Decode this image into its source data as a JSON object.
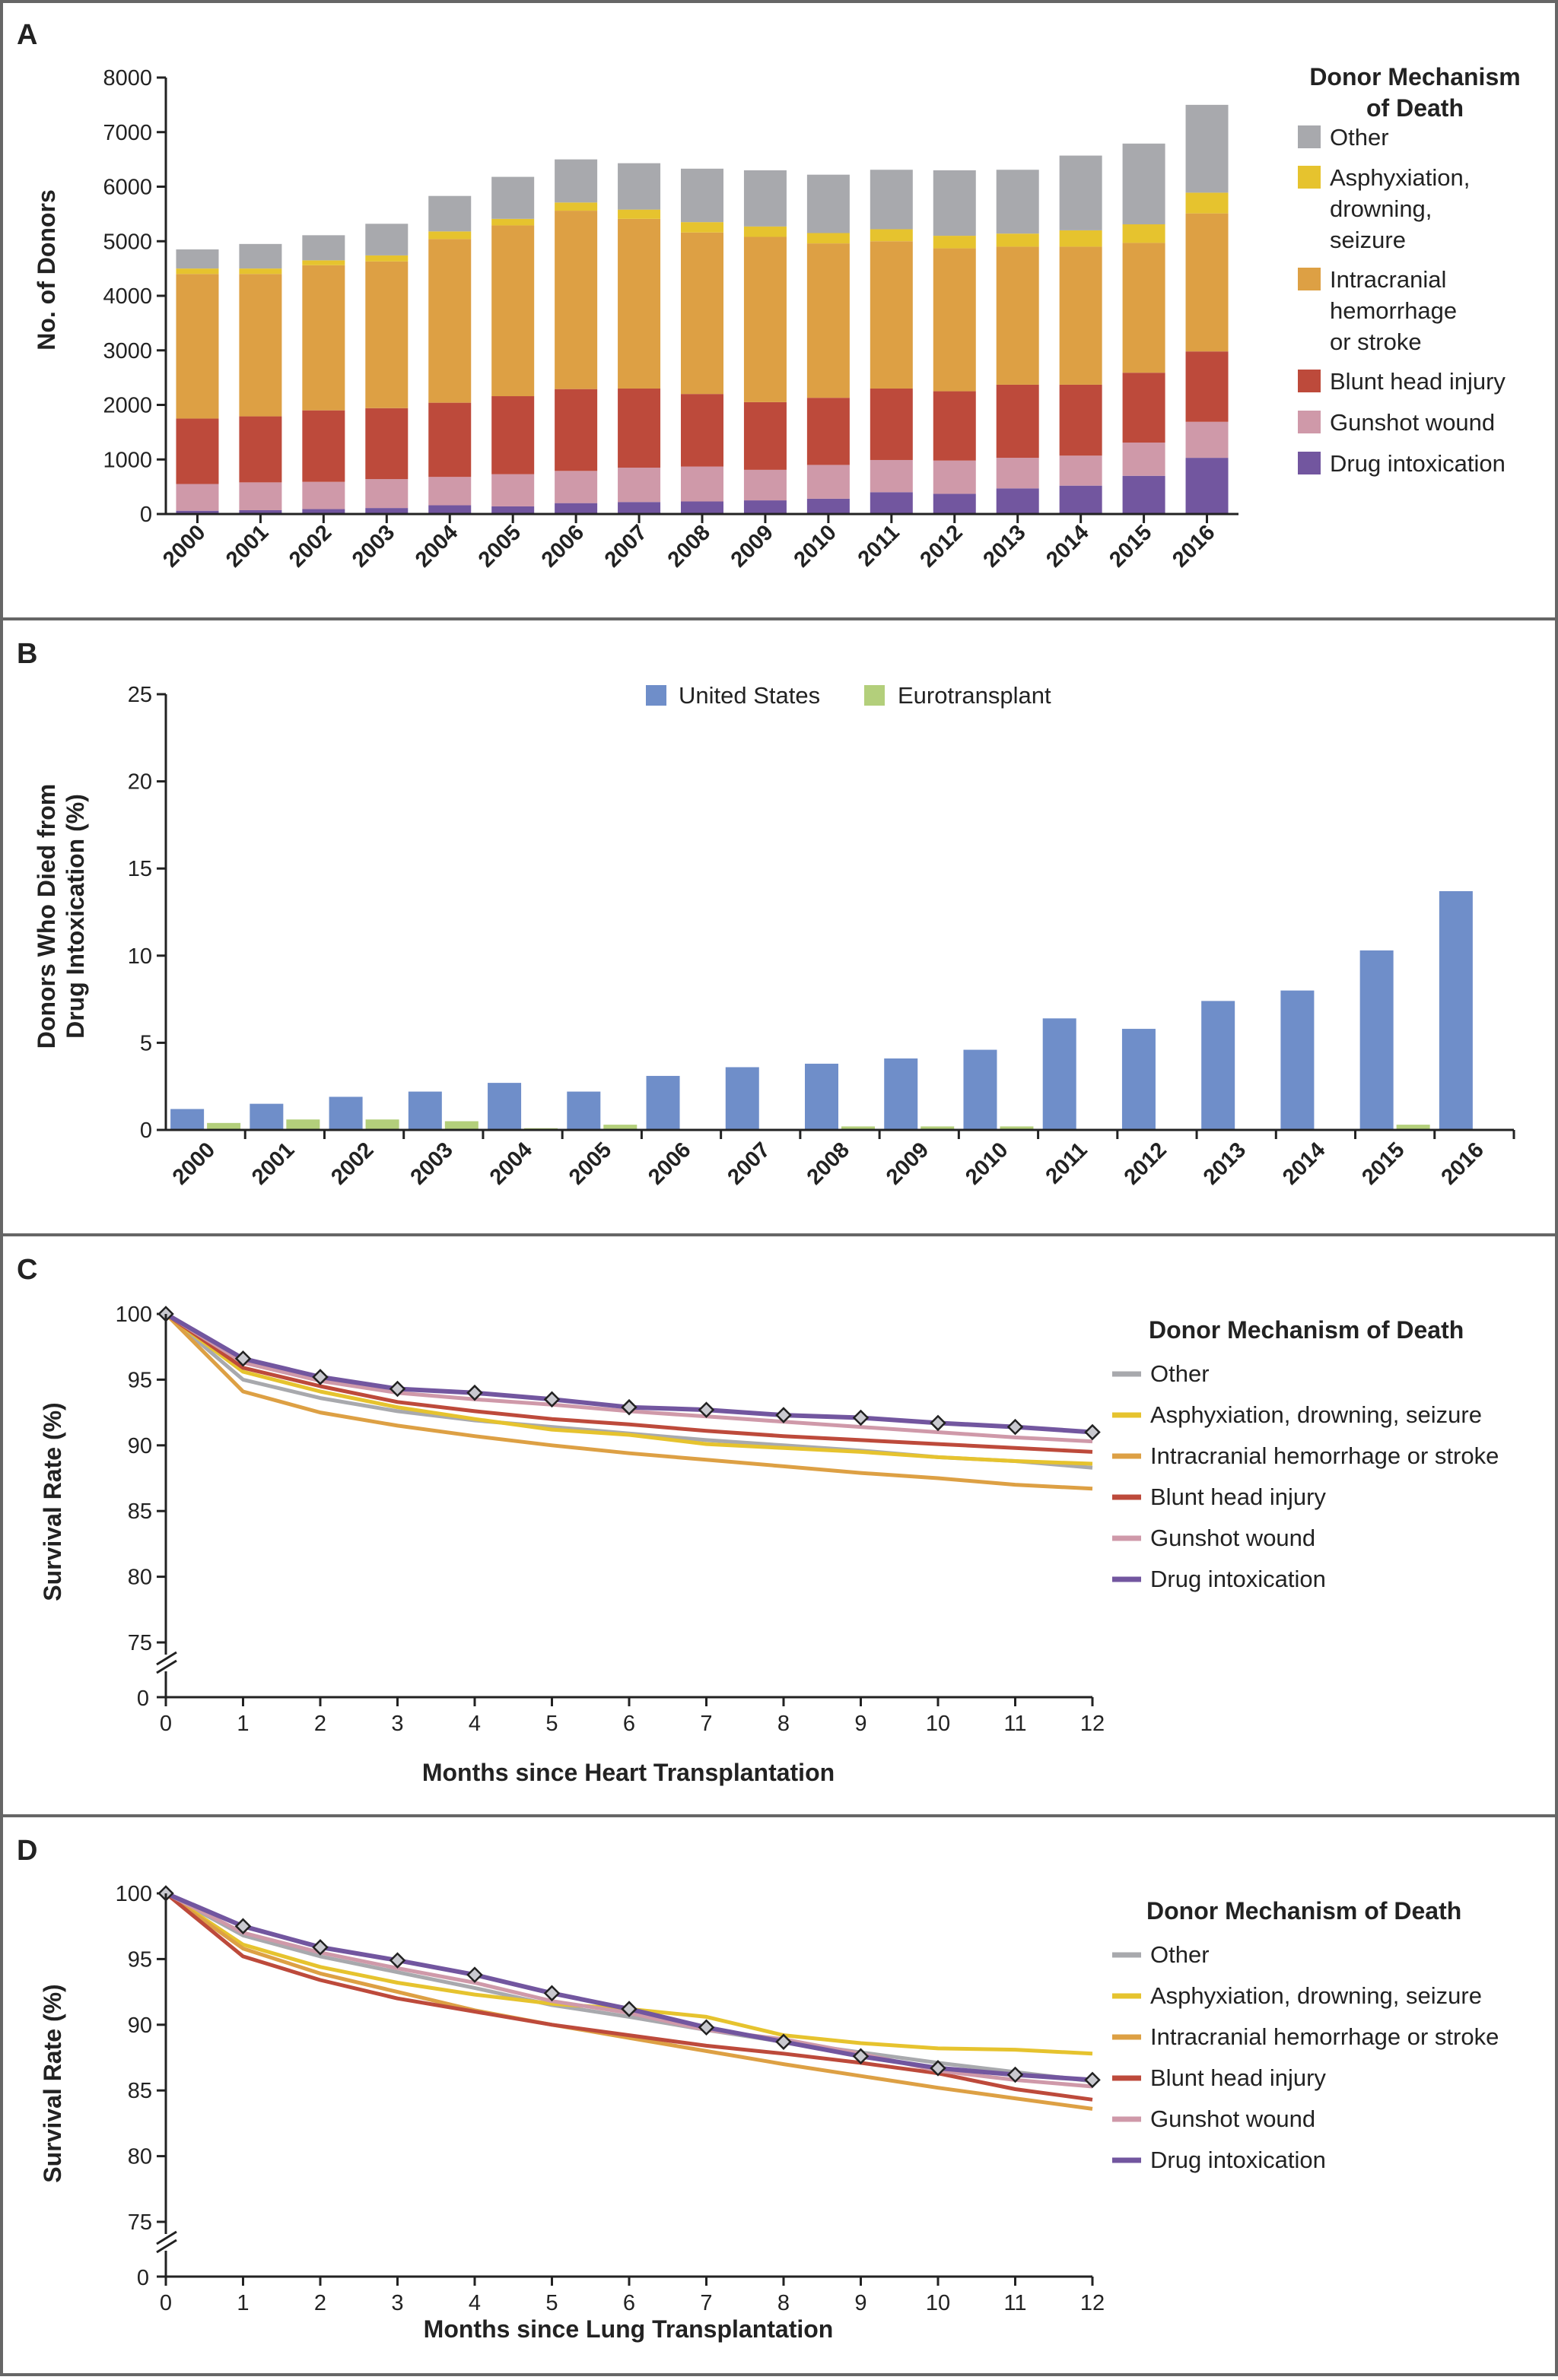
{
  "panels": {
    "A": {
      "letter": "A"
    },
    "B": {
      "letter": "B"
    },
    "C": {
      "letter": "C"
    },
    "D": {
      "letter": "D"
    }
  },
  "colors": {
    "other": "#a8a9ad",
    "asphyxiation": "#e6c32e",
    "intracranial": "#dda044",
    "blunt": "#bd4a3b",
    "gunshot": "#cf99a9",
    "drug": "#72569f",
    "us": "#6f8ec9",
    "eurotransplant": "#b3cf7b"
  },
  "chart_data": [
    {
      "id": "A",
      "type": "bar",
      "stacked": true,
      "title": "",
      "xlabel": "",
      "ylabel": "No. of Donors",
      "ylim": [
        0,
        8000
      ],
      "yticks": [
        0,
        1000,
        2000,
        3000,
        4000,
        5000,
        6000,
        7000,
        8000
      ],
      "categories": [
        "2000",
        "2001",
        "2002",
        "2003",
        "2004",
        "2005",
        "2006",
        "2007",
        "2008",
        "2009",
        "2010",
        "2011",
        "2012",
        "2013",
        "2014",
        "2015",
        "2016"
      ],
      "legend_title_line1": "Donor Mechanism",
      "legend_title_line2": "of Death",
      "series": [
        {
          "key": "drug",
          "name": "Drug intoxication",
          "values": [
            60,
            70,
            90,
            110,
            160,
            140,
            200,
            220,
            230,
            250,
            280,
            400,
            370,
            470,
            520,
            700,
            1030
          ]
        },
        {
          "key": "gunshot",
          "name": "Gunshot wound",
          "values": [
            490,
            510,
            500,
            530,
            520,
            590,
            590,
            630,
            640,
            560,
            620,
            590,
            610,
            560,
            550,
            610,
            660
          ]
        },
        {
          "key": "blunt",
          "name": "Blunt head injury",
          "values": [
            1200,
            1210,
            1310,
            1300,
            1360,
            1430,
            1500,
            1450,
            1330,
            1240,
            1230,
            1310,
            1270,
            1340,
            1300,
            1280,
            1290
          ]
        },
        {
          "key": "intracranial",
          "name": "Intracranial hemorrhage or stroke",
          "values": [
            2650,
            2610,
            2660,
            2690,
            3000,
            3130,
            3270,
            3110,
            2960,
            3030,
            2830,
            2700,
            2620,
            2530,
            2530,
            2380,
            2530
          ]
        },
        {
          "key": "asphyxiation",
          "name": "Asphyxiation, drowning, seizure",
          "values": [
            100,
            100,
            90,
            110,
            140,
            120,
            150,
            170,
            190,
            190,
            190,
            220,
            230,
            240,
            300,
            340,
            380
          ]
        },
        {
          "key": "other",
          "name": "Other",
          "values": [
            350,
            450,
            460,
            580,
            650,
            770,
            790,
            850,
            980,
            1030,
            1070,
            1090,
            1200,
            1170,
            1370,
            1480,
            1610
          ]
        }
      ],
      "legend_lines": {
        "other": [
          "Other"
        ],
        "asphyxiation": [
          "Asphyxiation,",
          "drowning,",
          "seizure"
        ],
        "intracranial": [
          "Intracranial",
          "hemorrhage",
          "or stroke"
        ],
        "blunt": [
          "Blunt head injury"
        ],
        "gunshot": [
          "Gunshot wound"
        ],
        "drug": [
          "Drug intoxication"
        ]
      }
    },
    {
      "id": "B",
      "type": "bar",
      "stacked": false,
      "title": "",
      "xlabel": "",
      "ylabel_line1": "Donors Who Died from",
      "ylabel_line2": "Drug Intoxication (%)",
      "ylim": [
        0,
        25
      ],
      "yticks": [
        0,
        5,
        10,
        15,
        20,
        25
      ],
      "categories": [
        "2000",
        "2001",
        "2002",
        "2003",
        "2004",
        "2005",
        "2006",
        "2007",
        "2008",
        "2009",
        "2010",
        "2011",
        "2012",
        "2013",
        "2014",
        "2015",
        "2016"
      ],
      "series": [
        {
          "key": "us",
          "name": "United States",
          "values": [
            1.2,
            1.5,
            1.9,
            2.2,
            2.7,
            2.2,
            3.1,
            3.6,
            3.8,
            4.1,
            4.6,
            6.4,
            5.8,
            7.4,
            8.0,
            10.3,
            13.7
          ]
        },
        {
          "key": "eurotransplant",
          "name": "Eurotransplant",
          "values": [
            0.4,
            0.6,
            0.6,
            0.5,
            0.1,
            0.3,
            0.0,
            0.0,
            0.2,
            0.2,
            0.2,
            0.0,
            0.0,
            0.0,
            0.0,
            0.3,
            0.0
          ]
        }
      ]
    },
    {
      "id": "C",
      "type": "line",
      "title": "",
      "xlabel": "Months since Heart Transplantation",
      "ylabel": "Survival Rate (%)",
      "ylim": [
        75,
        100
      ],
      "yticks": [
        75,
        80,
        85,
        90,
        95,
        100
      ],
      "ybreak_label": "0",
      "x": [
        0,
        1,
        2,
        3,
        4,
        5,
        6,
        7,
        8,
        9,
        10,
        11,
        12
      ],
      "legend_title": "Donor Mechanism of Death",
      "series": [
        {
          "key": "other",
          "name": "Other",
          "values": [
            100,
            95.0,
            93.6,
            92.6,
            91.9,
            91.4,
            90.9,
            90.4,
            90.0,
            89.6,
            89.1,
            88.8,
            88.3
          ]
        },
        {
          "key": "asphyxiation",
          "name": "Asphyxiation, drowning, seizure",
          "values": [
            100,
            95.6,
            94.1,
            92.9,
            92.0,
            91.2,
            90.8,
            90.1,
            89.8,
            89.5,
            89.1,
            88.8,
            88.6
          ]
        },
        {
          "key": "intracranial",
          "name": "Intracranial hemorrhage or stroke",
          "values": [
            100,
            94.1,
            92.5,
            91.5,
            90.7,
            90.0,
            89.4,
            88.9,
            88.4,
            87.9,
            87.5,
            87.0,
            86.7
          ]
        },
        {
          "key": "blunt",
          "name": "Blunt head injury",
          "values": [
            100,
            95.9,
            94.5,
            93.3,
            92.6,
            92.0,
            91.6,
            91.1,
            90.7,
            90.4,
            90.1,
            89.8,
            89.5
          ]
        },
        {
          "key": "gunshot",
          "name": "Gunshot wound",
          "values": [
            100,
            96.3,
            94.9,
            94.0,
            93.5,
            93.1,
            92.6,
            92.2,
            91.8,
            91.4,
            91.0,
            90.6,
            90.3
          ]
        },
        {
          "key": "drug",
          "name": "Drug intoxication",
          "values": [
            100,
            96.6,
            95.2,
            94.3,
            94.0,
            93.5,
            92.9,
            92.7,
            92.3,
            92.1,
            91.7,
            91.4,
            91.0
          ]
        }
      ],
      "marker_series": "drug"
    },
    {
      "id": "D",
      "type": "line",
      "title": "",
      "xlabel": "Months since Lung Transplantation",
      "ylabel": "Survival Rate (%)",
      "ylim": [
        75,
        100
      ],
      "yticks": [
        75,
        80,
        85,
        90,
        95,
        100
      ],
      "ybreak_label": "0",
      "x": [
        0,
        1,
        2,
        3,
        4,
        5,
        6,
        7,
        8,
        9,
        10,
        11,
        12
      ],
      "legend_title": "Donor Mechanism of Death",
      "series": [
        {
          "key": "other",
          "name": "Other",
          "values": [
            100,
            96.8,
            95.2,
            94.0,
            92.8,
            91.5,
            90.6,
            89.6,
            88.7,
            87.9,
            87.1,
            86.4,
            85.7
          ]
        },
        {
          "key": "asphyxiation",
          "name": "Asphyxiation, drowning, seizure",
          "values": [
            100,
            96.1,
            94.4,
            93.2,
            92.3,
            91.6,
            91.2,
            90.6,
            89.2,
            88.6,
            88.2,
            88.1,
            87.8
          ]
        },
        {
          "key": "intracranial",
          "name": "Intracranial hemorrhage or stroke",
          "values": [
            100,
            95.8,
            93.9,
            92.5,
            91.1,
            90.0,
            89.0,
            88.0,
            87.0,
            86.1,
            85.2,
            84.4,
            83.6
          ]
        },
        {
          "key": "blunt",
          "name": "Blunt head injury",
          "values": [
            100,
            95.2,
            93.4,
            92.0,
            91.0,
            90.0,
            89.2,
            88.4,
            87.8,
            87.1,
            86.3,
            85.1,
            84.3
          ]
        },
        {
          "key": "gunshot",
          "name": "Gunshot wound",
          "values": [
            100,
            97.0,
            95.5,
            94.3,
            93.2,
            91.8,
            90.9,
            89.6,
            88.9,
            87.8,
            86.5,
            85.8,
            85.3
          ]
        },
        {
          "key": "drug",
          "name": "Drug intoxication",
          "values": [
            100,
            97.5,
            95.9,
            94.9,
            93.8,
            92.4,
            91.2,
            89.8,
            88.7,
            87.6,
            86.7,
            86.2,
            85.8
          ]
        }
      ],
      "marker_series": "drug"
    }
  ]
}
